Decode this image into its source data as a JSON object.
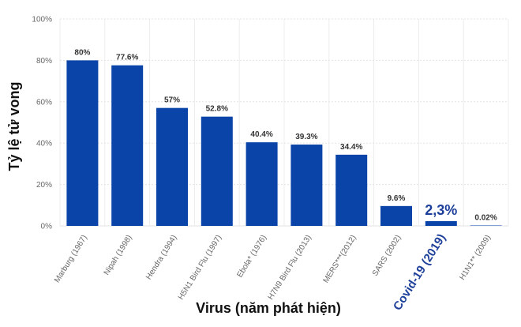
{
  "chart_data": {
    "type": "bar",
    "title": "",
    "xlabel": "Virus (năm phát hiện)",
    "ylabel": "Tỷ lệ tử vong",
    "ylim": [
      0,
      100
    ],
    "yticks": [
      "0%",
      "20%",
      "40%",
      "60%",
      "80%",
      "100%"
    ],
    "grid": true,
    "bar_color": "#0b44a8",
    "highlight_color": "#1d3f9a",
    "highlight_index": 8,
    "categories": [
      "Marburg (1967)",
      "Nipah (1998)",
      "Hendra (1994)",
      "H5N1 Bird Flu (1997)",
      "Ebola* (1976)",
      "H7N9 Bird Flu (2013)",
      "MERS***(2012)",
      "SARS (2002)",
      "Covid-19 (2019)",
      "H1N1** (2009)"
    ],
    "values": [
      80,
      77.6,
      57,
      52.8,
      40.4,
      39.3,
      34.4,
      9.6,
      2.3,
      0.02
    ],
    "value_labels": [
      "80%",
      "77.6%",
      "57%",
      "52.8%",
      "40.4%",
      "39.3%",
      "34.4%",
      "9.6%",
      "2,3%",
      "0.02%"
    ]
  }
}
